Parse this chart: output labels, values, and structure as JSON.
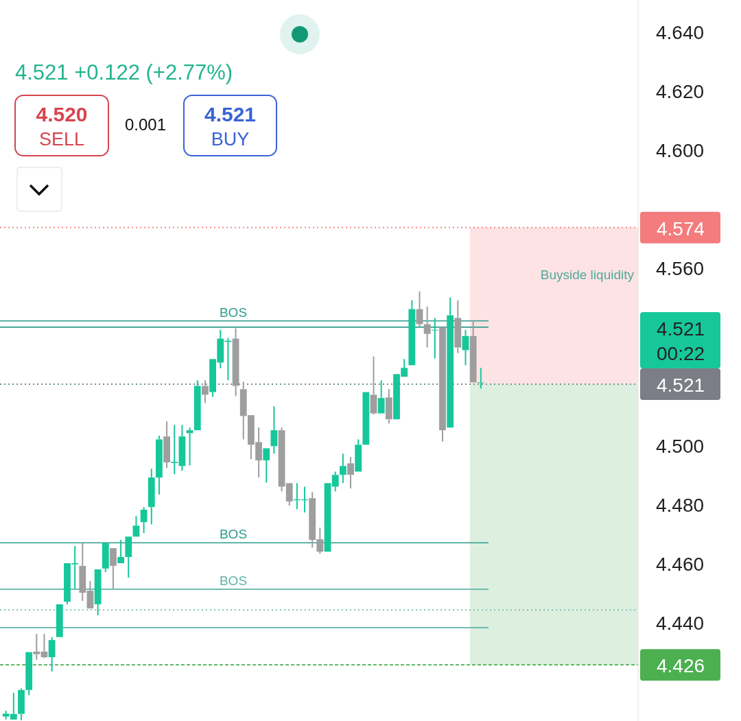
{
  "chart_data": {
    "type": "candlestick",
    "subtitle": "4.521  +0.122 (+2.77%)",
    "annotations": [
      "4.520",
      "SELL",
      "0.001",
      "4.521",
      "BUY"
    ],
    "categories": [
      null,
      null,
      null,
      null,
      null,
      null,
      null,
      null,
      null,
      null,
      null,
      null,
      null,
      null,
      null,
      null,
      null,
      null,
      null,
      null,
      null,
      null,
      null,
      null,
      null,
      null,
      null,
      null,
      null,
      null,
      null,
      null,
      null,
      null,
      null,
      null,
      null,
      null,
      null,
      null,
      null,
      null,
      null,
      null,
      null,
      null,
      null,
      null,
      null,
      null,
      null,
      null,
      null,
      null,
      null,
      null,
      null,
      null,
      null,
      null,
      null,
      null,
      null,
      null,
      null,
      null,
      null,
      null,
      null,
      null,
      null,
      null,
      null,
      null,
      null,
      null,
      null,
      null,
      null,
      null,
      null,
      null,
      null
    ],
    "ohlc": [
      [
        4.4085,
        4.4105,
        4.4075,
        4.4095
      ],
      [
        4.4075,
        4.4165,
        4.4075,
        4.4094
      ],
      [
        4.4094,
        4.418,
        4.4073,
        4.4175
      ],
      [
        4.4175,
        4.4303,
        4.4157,
        4.4303
      ],
      [
        4.4305,
        4.4365,
        4.4277,
        4.4296
      ],
      [
        4.4305,
        4.4365,
        4.4283,
        4.4286
      ],
      [
        4.4286,
        4.4354,
        4.4238,
        4.4344
      ],
      [
        4.4354,
        4.4465,
        4.4354,
        4.4465
      ],
      [
        4.4474,
        4.4604,
        4.4465,
        4.4604
      ],
      [
        4.46,
        4.4662,
        4.4516,
        4.4604
      ],
      [
        4.4595,
        4.4673,
        4.4476,
        4.4504
      ],
      [
        4.4511,
        4.4544,
        4.4451,
        4.4451
      ],
      [
        4.4465,
        4.4583,
        4.4428,
        4.4583
      ],
      [
        4.4586,
        4.4673,
        4.4574,
        4.4673
      ],
      [
        4.4655,
        4.4655,
        4.4516,
        4.4595
      ],
      [
        4.4604,
        4.4683,
        4.4604,
        4.4625
      ],
      [
        4.4625,
        4.4694,
        4.4555,
        4.4694
      ],
      [
        4.4694,
        4.4764,
        4.4694,
        4.4731
      ],
      [
        4.4743,
        4.4794,
        4.4706,
        4.4785
      ],
      [
        4.4794,
        4.4924,
        4.4736,
        4.4894
      ],
      [
        4.4894,
        4.5035,
        4.4836,
        4.5023
      ],
      [
        4.5033,
        4.5084,
        4.4926,
        4.4945
      ],
      [
        4.4943,
        4.5072,
        4.4905,
        4.4947
      ],
      [
        4.4933,
        4.5072,
        4.4917,
        4.5033
      ],
      [
        4.5044,
        4.5063,
        4.4935,
        4.5054
      ],
      [
        4.5054,
        4.5223,
        4.5054,
        4.5204
      ],
      [
        4.5204,
        4.5223,
        4.5146,
        4.5174
      ],
      [
        4.5183,
        4.5295,
        4.5167,
        4.5295
      ],
      [
        4.5283,
        4.5394,
        4.5264,
        4.5364
      ],
      [
        4.5353,
        4.5366,
        4.5223,
        4.5357
      ],
      [
        4.5364,
        4.5399,
        4.5169,
        4.5204
      ],
      [
        4.5193,
        4.5218,
        4.5023,
        4.5102
      ],
      [
        4.5105,
        4.5105,
        4.4956,
        4.5005
      ],
      [
        4.5014,
        4.5063,
        4.4894,
        4.4952
      ],
      [
        4.4952,
        4.4993,
        4.4877,
        4.4993
      ],
      [
        4.5,
        4.5135,
        4.4975,
        4.5054
      ],
      [
        4.5054,
        4.5063,
        4.4847,
        4.4863
      ],
      [
        4.4875,
        4.4875,
        4.4799,
        4.4813
      ],
      [
        4.4817,
        4.4875,
        4.4787,
        4.482
      ],
      [
        4.4817,
        4.4863,
        4.4776,
        4.482
      ],
      [
        4.4824,
        4.4845,
        4.4657,
        4.4683
      ],
      [
        4.4685,
        4.4724,
        4.4636,
        4.4643
      ],
      [
        4.4643,
        4.4875,
        4.4643,
        4.4875
      ],
      [
        4.4863,
        4.4914,
        4.4847,
        4.4903
      ],
      [
        4.4903,
        4.4975,
        4.4875,
        4.4933
      ],
      [
        4.4942,
        4.4963,
        4.4857,
        4.4903
      ],
      [
        4.4914,
        4.5023,
        4.4914,
        4.5005
      ],
      [
        4.5005,
        4.5183,
        4.5005,
        4.5183
      ],
      [
        4.5174,
        4.5304,
        4.5107,
        4.5111
      ],
      [
        4.5111,
        4.5223,
        4.5111,
        4.5163
      ],
      [
        4.5165,
        4.5193,
        4.5077,
        4.5091
      ],
      [
        4.5091,
        4.5244,
        4.5091,
        4.5244
      ],
      [
        4.5235,
        4.5295,
        4.5235,
        4.5265
      ],
      [
        4.5274,
        4.5494,
        4.5274,
        4.5464
      ],
      [
        4.5464,
        4.5524,
        4.5404,
        4.5413
      ],
      [
        4.5413,
        4.5473,
        4.5334,
        4.538
      ],
      [
        4.5392,
        4.5434,
        4.5297,
        4.5394
      ],
      [
        4.5403,
        4.5403,
        4.5016,
        4.5054
      ],
      [
        4.5063,
        4.5503,
        4.5063,
        4.5443
      ],
      [
        4.5434,
        4.5494,
        4.5315,
        4.5334
      ],
      [
        4.5325,
        4.5394,
        4.5274,
        4.5373
      ],
      [
        4.5373,
        4.5427,
        4.5216,
        4.5216
      ],
      [
        4.5214,
        4.5265,
        4.5195,
        4.5216
      ],
      null,
      null,
      null,
      null,
      null,
      null,
      null,
      null,
      null,
      null,
      null,
      null,
      null,
      null,
      null,
      null,
      null,
      null,
      null,
      null
    ],
    "ylim": [
      4.407,
      4.651
    ],
    "yticks": [
      {
        "value": 4.44,
        "label": "4.440"
      },
      {
        "value": 4.46,
        "label": "4.460"
      },
      {
        "value": 4.48,
        "label": "4.480"
      },
      {
        "value": 4.5,
        "label": "4.500"
      },
      {
        "value": 4.56,
        "label": "4.560"
      },
      {
        "value": 4.6,
        "label": "4.600"
      },
      {
        "value": 4.62,
        "label": "4.620"
      },
      {
        "value": 4.64,
        "label": "4.640"
      }
    ],
    "ref_lines": [
      {
        "axis": "y",
        "value": 4.574,
        "label": "4.574",
        "color": "#f47c7c",
        "line_style": "dotted"
      },
      {
        "axis": "y",
        "value": 4.521,
        "label": "4.521\n00:22",
        "color": "#16c79a",
        "line_style": "dotted"
      },
      {
        "axis": "y",
        "value": 4.521,
        "label": "4.521",
        "color": "#7b7d87",
        "line_style": "dotted"
      },
      {
        "axis": "y",
        "value": 4.426,
        "label": "4.426",
        "color": "#4caf50",
        "line_style": "dashed"
      },
      {
        "axis": "y",
        "value": 4.5424,
        "label": "BOS",
        "color": "#2e9c8c",
        "line_style": "solid"
      },
      {
        "axis": "y",
        "value": 4.5403,
        "color": "#2e9c8c",
        "line_style": "solid"
      },
      {
        "axis": "y",
        "value": 4.4673,
        "label": "BOS",
        "color": "#2e9c8c",
        "line_style": "solid"
      },
      {
        "axis": "y",
        "value": 4.4516,
        "label": "BOS",
        "color": "#5fb3a6",
        "line_style": "solid"
      },
      {
        "axis": "y",
        "value": 4.4446,
        "color": "#5fb3a6",
        "line_style": "dotted"
      },
      {
        "axis": "y",
        "value": 4.4386,
        "color": "#5fb3a6",
        "line_style": "solid"
      }
    ],
    "bands": [
      {
        "axis": "y",
        "from": 4.521,
        "to": 4.574,
        "label": "Buyside liquidity",
        "color": "#fde3e4"
      },
      {
        "axis": "y",
        "from": 4.426,
        "to": 4.521,
        "color": "#ddefdf"
      }
    ]
  }
}
